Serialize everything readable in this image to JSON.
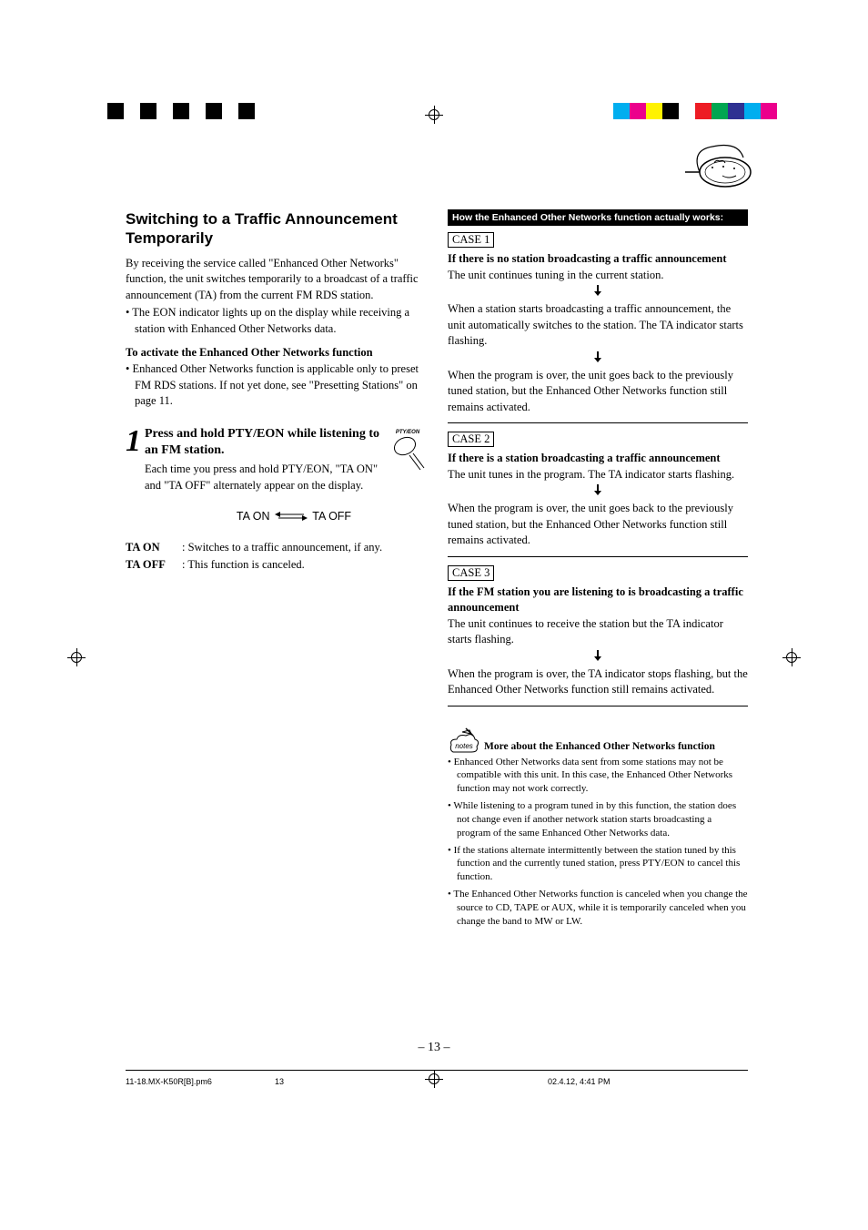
{
  "registration": {
    "left_colors": [
      "#ffffff",
      "#000000",
      "#ffffff",
      "#000000",
      "#ffffff",
      "#000000",
      "#ffffff",
      "#000000",
      "#ffffff",
      "#000000"
    ],
    "right_colors": [
      "#00aeef",
      "#ec008c",
      "#fff200",
      "#000000",
      "#ffffff",
      "#ed1c24",
      "#00a651",
      "#2e3192",
      "#00aeef",
      "#ec008c"
    ]
  },
  "left_col": {
    "section_title": "Switching to a Traffic Announcement Temporarily",
    "intro": "By receiving the service called \"Enhanced Other Networks\" function, the unit switches temporarily to a broadcast of a traffic announcement (TA) from the current FM RDS station.",
    "intro_bullet": "• The EON indicator lights up on the display while receiving a station with Enhanced Other Networks data.",
    "activate_head": "To activate the Enhanced Other Networks function",
    "activate_bullet": "• Enhanced Other Networks function is applicable only to preset FM RDS stations. If not yet done, see \"Presetting Stations\" on page 11.",
    "step_num": "1",
    "step_title": "Press and hold PTY/EON while listening to an FM station.",
    "step_body": "Each time you press and hold PTY/EON, \"TA ON\" and  \"TA OFF\" alternately appear on the display.",
    "pty_label": "PTY/EON",
    "ta_on": "TA ON",
    "ta_off": "TA OFF",
    "def_on_label": "TA ON",
    "def_on_text": ": Switches to a traffic announcement, if any.",
    "def_off_label": "TA OFF",
    "def_off_text": ": This function is canceled."
  },
  "right_col": {
    "bar": "How the Enhanced Other Networks function actually works:",
    "case1": {
      "label": "CASE 1",
      "title": "If there is no station broadcasting a traffic announcement",
      "line1": "The unit continues tuning in the current station.",
      "line2": "When a station starts broadcasting a traffic announcement, the unit automatically switches to the station. The TA indicator starts flashing.",
      "line3": "When the program is over, the unit goes back to the previously tuned station, but the Enhanced Other Networks function still remains activated."
    },
    "case2": {
      "label": "CASE 2",
      "title": "If there is a station broadcasting a traffic announcement",
      "line1": "The unit tunes in the program. The TA indicator starts flashing.",
      "line2": "When the program is over, the unit goes back to the previously tuned station, but the Enhanced Other Networks function still remains activated."
    },
    "case3": {
      "label": "CASE 3",
      "title": "If the FM station you are listening to is broadcasting a traffic announcement",
      "line1": "The unit continues to receive the station but the TA indicator starts flashing.",
      "line2": "When the program is over, the TA indicator stops flashing, but the Enhanced Other Networks function still remains activated."
    },
    "notes_title": "More about the Enhanced Other Networks function",
    "notes": [
      "• Enhanced Other Networks data sent from some stations may not be compatible with this unit. In this case, the Enhanced Other Networks function may not work correctly.",
      "• While listening to a program tuned in by this function, the station does not change even if another network station starts broadcasting a program of the same Enhanced Other Networks data.",
      "• If the stations alternate intermittently between the station tuned by this function and the currently tuned station, press PTY/EON to cancel this function.",
      "• The Enhanced Other Networks function is canceled when you change the source to CD, TAPE or AUX, while it is temporarily canceled when you change the band to MW or LW."
    ]
  },
  "page_num": "– 13 –",
  "footer": {
    "left": "11-18.MX-K50R[B].pm6",
    "mid": "13",
    "right": "02.4.12, 4:41 PM"
  },
  "colors": {
    "text": "#000000",
    "bg": "#ffffff"
  }
}
